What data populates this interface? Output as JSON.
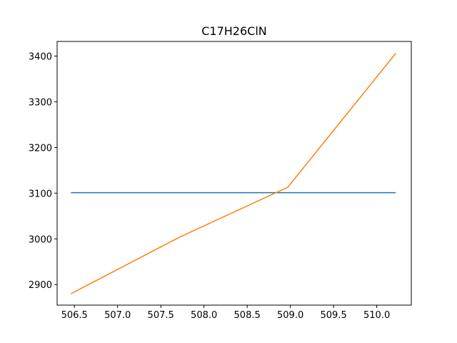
{
  "chart_data": {
    "type": "line",
    "title": "C17H26ClN",
    "xlabel": "",
    "ylabel": "",
    "xlim": [
      506.3,
      510.4
    ],
    "ylim": [
      2855,
      3432
    ],
    "x_ticks": [
      506.5,
      507.0,
      507.5,
      508.0,
      508.5,
      509.0,
      509.5,
      510.0
    ],
    "x_tick_labels": [
      "506.5",
      "507.0",
      "507.5",
      "508.0",
      "508.5",
      "509.0",
      "509.5",
      "510.0"
    ],
    "y_ticks": [
      2900,
      3000,
      3100,
      3200,
      3300,
      3400
    ],
    "y_tick_labels": [
      "2900",
      "3000",
      "3100",
      "3200",
      "3300",
      "3400"
    ],
    "grid": false,
    "series": [
      {
        "color": "#1f77b4",
        "x": [
          506.46,
          510.22
        ],
        "y": [
          3101,
          3101
        ]
      },
      {
        "color": "#ff7f0e",
        "x": [
          506.46,
          507.72,
          508.97,
          510.22
        ],
        "y": [
          2880,
          3004,
          3113,
          3406
        ]
      }
    ]
  }
}
